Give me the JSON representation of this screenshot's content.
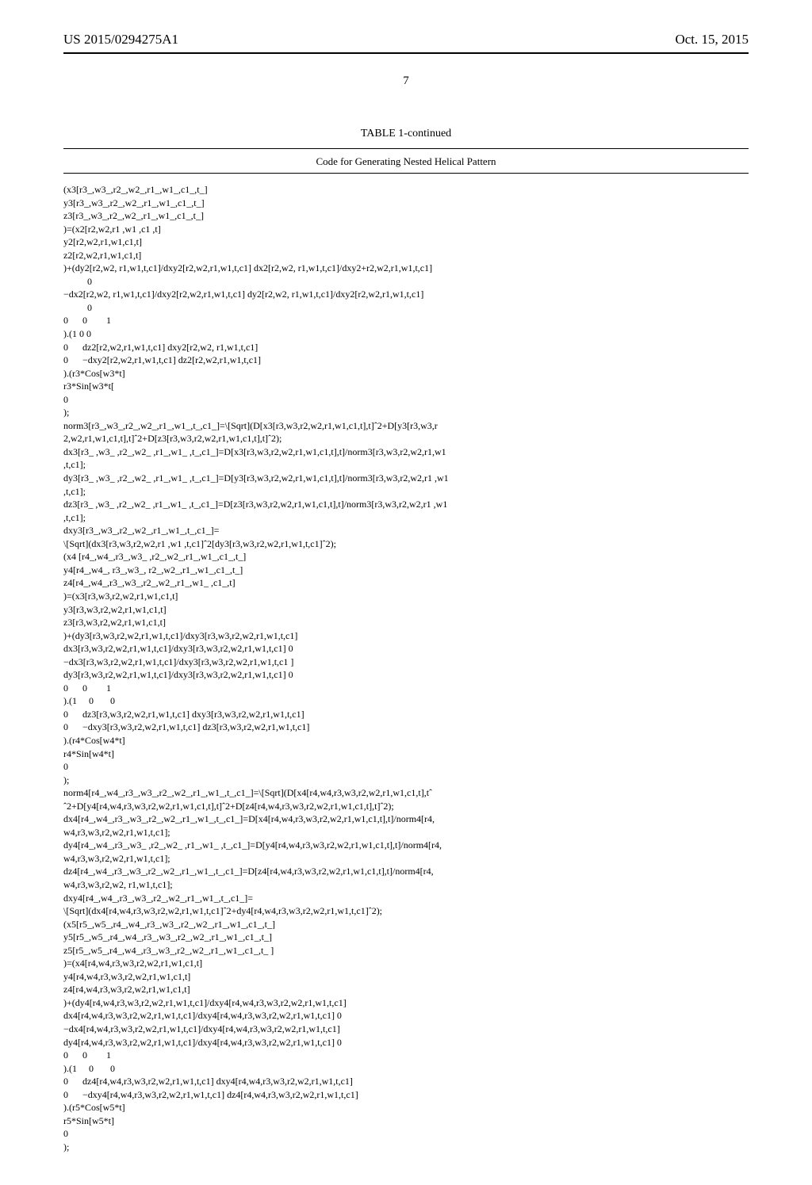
{
  "header": {
    "pub_number": "US 2015/0294275A1",
    "date": "Oct. 15, 2015"
  },
  "page_number": "7",
  "table": {
    "title": "TABLE 1-continued",
    "subtitle": "Code for Generating Nested Helical Pattern",
    "code_lines": [
      "(x3[r3_,w3_,r2_,w2_,r1_,w1_,c1_,t_]",
      "y3[r3_,w3_,r2_,w2_,r1_,w1_,c1_,t_]",
      "z3[r3_,w3_,r2_,w2_,r1_,w1_,c1_,t_]",
      ")=(x2[r2,w2,r1 ,w1 ,c1 ,t]",
      "y2[r2,w2,r1,w1,c1,t]",
      "z2[r2,w2,r1,w1,c1,t]",
      ")+(dy2[r2,w2, r1,w1,t,c1]/dxy2[r2,w2,r1,w1,t,c1] dx2[r2,w2, r1,w1,t,c1]/dxy2+r2,w2,r1,w1,t,c1]",
      "          0",
      "−dx2[r2,w2, r1,w1,t,c1]/dxy2[r2,w2,r1,w1,t,c1] dy2[r2,w2, r1,w1,t,c1]/dxy2[r2,w2,r1,w1,t,c1]",
      "          0",
      "0      0        1",
      ").(1 0 0",
      "0      dz2[r2,w2,r1,w1,t,c1] dxy2[r2,w2, r1,w1,t,c1]",
      "0      −dxy2[r2,w2,r1,w1,t,c1] dz2[r2,w2,r1,w1,t,c1]",
      ").(r3*Cos[w3*t]",
      "r3*Sin[w3*t[",
      "0",
      ");",
      "norm3[r3_,w3_,r2_,w2_,r1_,w1_,t_,c1_]=\\[Sqrt](D[x3[r3,w3,r2,w2,r1,w1,c1,t],t]ˆ2+D[y3[r3,w3,r",
      "2,w2,r1,w1,c1,t],t]ˆ2+D[z3[r3,w3,r2,w2,r1,w1,c1,t],t]ˆ2);",
      "dx3[r3_ ,w3_ ,r2_,w2_ ,r1_,w1_ ,t_,c1_]=D[x3[r3,w3,r2,w2,r1,w1,c1,t],t]/norm3[r3,w3,r2,w2,r1,w1",
      ",t,c1];",
      "dy3[r3_ ,w3_ ,r2_,w2_ ,r1_,w1_ ,t_,c1_]=D[y3[r3,w3,r2,w2,r1,w1,c1,t],t]/norm3[r3,w3,r2,w2,r1 ,w1",
      ",t,c1];",
      "dz3[r3_ ,w3_ ,r2_,w2_ ,r1_,w1_ ,t_,c1_]=D[z3[r3,w3,r2,w2,r1,w1,c1,t],t]/norm3[r3,w3,r2,w2,r1 ,w1",
      ",t,c1];",
      "dxy3[r3_,w3_,r2_,w2_,r1_,w1_,t_,c1_]=",
      "\\[Sqrt](dx3[r3,w3,r2,w2,r1 ,w1 ,t,c1]ˆ2[dy3[r3,w3,r2,w2,r1,w1,t,c1]ˆ2);",
      "(x4 [r4_,w4_,r3_,w3_ ,r2_,w2_,r1_,w1_,c1_,t_]",
      "y4[r4_,w4_, r3_,w3_, r2_,w2_,r1_,w1_,c1_,t_]",
      "z4[r4_,w4_,r3_,w3_,r2_,w2_,r1_,w1_ ,c1_,t]",
      ")=(x3[r3,w3,r2,w2,r1,w1,c1,t]",
      "y3[r3,w3,r2,w2,r1,w1,c1,t]",
      "z3[r3,w3,r2,w2,r1,w1,c1,t]",
      ")+(dy3[r3,w3,r2,w2,r1,w1,t,c1]/dxy3[r3,w3,r2,w2,r1,w1,t,c1]",
      "dx3[r3,w3,r2,w2,r1,w1,t,c1]/dxy3[r3,w3,r2,w2,r1,w1,t,c1] 0",
      "−dx3[r3,w3,r2,w2,r1,w1,t,c1]/dxy3[r3,w3,r2,w2,r1,w1,t,c1 ]",
      "dy3[r3,w3,r2,w2,r1,w1,t,c1]/dxy3[r3,w3,r2,w2,r1,w1,t,c1] 0",
      "0      0        1",
      ").(1     0       0",
      "0      dz3[r3,w3,r2,w2,r1,w1,t,c1] dxy3[r3,w3,r2,w2,r1,w1,t,c1]",
      "0      −dxy3[r3,w3,r2,w2,r1,w1,t,c1] dz3[r3,w3,r2,w2,r1,w1,t,c1]",
      ").(r4*Cos[w4*t]",
      "r4*Sin[w4*t]",
      "0",
      ");",
      "norm4[r4_,w4_,r3_,w3_,r2_,w2_,r1_,w1_,t_,c1_]=\\[Sqrt](D[x4[r4,w4,r3,w3,r2,w2,r1,w1,c1,t],tˆ",
      "ˆ2+D[y4[r4,w4,r3,w3,r2,w2,r1,w1,c1,t],t]ˆ2+D[z4[r4,w4,r3,w3,r2,w2,r1,w1,c1,t],t]ˆ2);",
      "dx4[r4_,w4_,r3_,w3_,r2_,w2_,r1_,w1_,t_,c1_]=D[x4[r4,w4,r3,w3,r2,w2,r1,w1,c1,t],t]/norm4[r4,",
      "w4,r3,w3,r2,w2,r1,w1,t,c1];",
      "dy4[r4_,w4_,r3_,w3_ ,r2_,w2_ ,r1_,w1_ ,t_,c1_]=D[y4[r4,w4,r3,w3,r2,w2,r1,w1,c1,t],t]/norm4[r4,",
      "w4,r3,w3,r2,w2,r1,w1,t,c1];",
      "dz4[r4_,w4_,r3_,w3_,r2_,w2_,r1_,w1_,t_,c1_]=D[z4[r4,w4,r3,w3,r2,w2,r1,w1,c1,t],t]/norm4[r4,",
      "w4,r3,w3,r2,w2, r1,w1,t,c1];",
      "dxy4[r4_,w4_,r3_,w3_,r2_,w2_,r1_,w1_,t_,c1_]=",
      "\\[Sqrt](dx4[r4,w4,r3,w3,r2,w2,r1,w1,t,c1]ˆ2+dy4[r4,w4,r3,w3,r2,w2,r1,w1,t,c1]ˆ2);",
      "(x5[r5_,w5_,r4_,w4_,r3_,w3_,r2_,w2_,r1_,w1_,c1_,t_]",
      "y5[r5_,w5_,r4_,w4_,r3_,w3_,r2_,w2_,r1_,w1_,c1_,t_]",
      "z5[r5_,w5_,r4_,w4_,r3_,w3_,r2_,w2_,r1_,w1_,c1_,t_ ]",
      ")=(x4[r4,w4,r3,w3,r2,w2,r1,w1,c1,t]",
      "y4[r4,w4,r3,w3,r2,w2,r1,w1,c1,t]",
      "z4[r4,w4,r3,w3,r2,w2,r1,w1,c1,t]",
      ")+(dy4[r4,w4,r3,w3,r2,w2,r1,w1,t,c1]/dxy4[r4,w4,r3,w3,r2,w2,r1,w1,t,c1]",
      "dx4[r4,w4,r3,w3,r2,w2,r1,w1,t,c1]/dxy4[r4,w4,r3,w3,r2,w2,r1,w1,t,c1] 0",
      "−dx4[r4,w4,r3,w3,r2,w2,r1,w1,t,c1]/dxy4[r4,w4,r3,w3,r2,w2,r1,w1,t,c1]",
      "dy4[r4,w4,r3,w3,r2,w2,r1,w1,t,c1]/dxy4[r4,w4,r3,w3,r2,w2,r1,w1,t,c1] 0",
      "0      0        1",
      ").(1     0       0",
      "0      dz4[r4,w4,r3,w3,r2,w2,r1,w1,t,c1] dxy4[r4,w4,r3,w3,r2,w2,r1,w1,t,c1]",
      "0      −dxy4[r4,w4,r3,w3,r2,w2,r1,w1,t,c1] dz4[r4,w4,r3,w3,r2,w2,r1,w1,t,c1]",
      ").(r5*Cos[w5*t]",
      "r5*Sin[w5*t]",
      "0",
      ");"
    ]
  }
}
